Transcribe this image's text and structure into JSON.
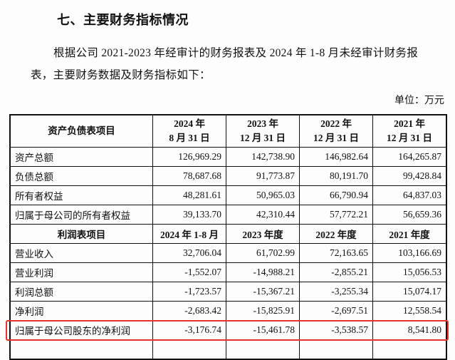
{
  "section_title": "七、主要财务指标情况",
  "paragraph_line1": "根据公司 2021-2023 年经审计的财务报表及 2024 年 1-8 月未经审计财务报",
  "paragraph_line2": "表，主要财务数据及财务指标如下：",
  "unit": "单位：万元",
  "balance_sheet": {
    "header_label": "资产负债表项目",
    "columns": [
      {
        "line1": "2024 年",
        "line2": "8 月 31 日"
      },
      {
        "line1": "2023 年",
        "line2": "12 月 31 日"
      },
      {
        "line1": "2022 年",
        "line2": "12 月 31 日"
      },
      {
        "line1": "2021 年",
        "line2": "12 月 31 日"
      }
    ],
    "rows": [
      {
        "label": "资产总额",
        "values": [
          "126,969.29",
          "142,738.90",
          "146,982.64",
          "164,265.87"
        ]
      },
      {
        "label": "负债总额",
        "values": [
          "78,687.68",
          "91,773.87",
          "80,191.70",
          "99,428.84"
        ]
      },
      {
        "label": "所有者权益",
        "values": [
          "48,281.61",
          "50,965.03",
          "66,790.94",
          "64,837.03"
        ]
      },
      {
        "label": "归属于母公司的所有者权益",
        "values": [
          "39,133.70",
          "42,310.44",
          "57,772.21",
          "56,659.36"
        ]
      }
    ]
  },
  "income_statement": {
    "header_label": "利润表项目",
    "columns": [
      "2024 年 1-8 月",
      "2023 年度",
      "2022 年度",
      "2021 年度"
    ],
    "rows": [
      {
        "label": "营业收入",
        "values": [
          "32,706.04",
          "61,702.99",
          "72,163.65",
          "103,166.69"
        ]
      },
      {
        "label": "营业利润",
        "values": [
          "-1,552.07",
          "-14,988.21",
          "-2,855.21",
          "15,056.53"
        ]
      },
      {
        "label": "利润总额",
        "values": [
          "-1,723.57",
          "-15,367.21",
          "-3,255.34",
          "15,074.17"
        ]
      },
      {
        "label": "净利润",
        "values": [
          "-2,683.42",
          "-15,825.91",
          "-2,697.51",
          "12,558.54"
        ]
      },
      {
        "label": "归属于母公司股东的净利润",
        "values": [
          "-3,176.74",
          "-15,461.78",
          "-3,538.57",
          "8,541.80"
        ]
      }
    ]
  },
  "highlight_color": "#e8322c"
}
